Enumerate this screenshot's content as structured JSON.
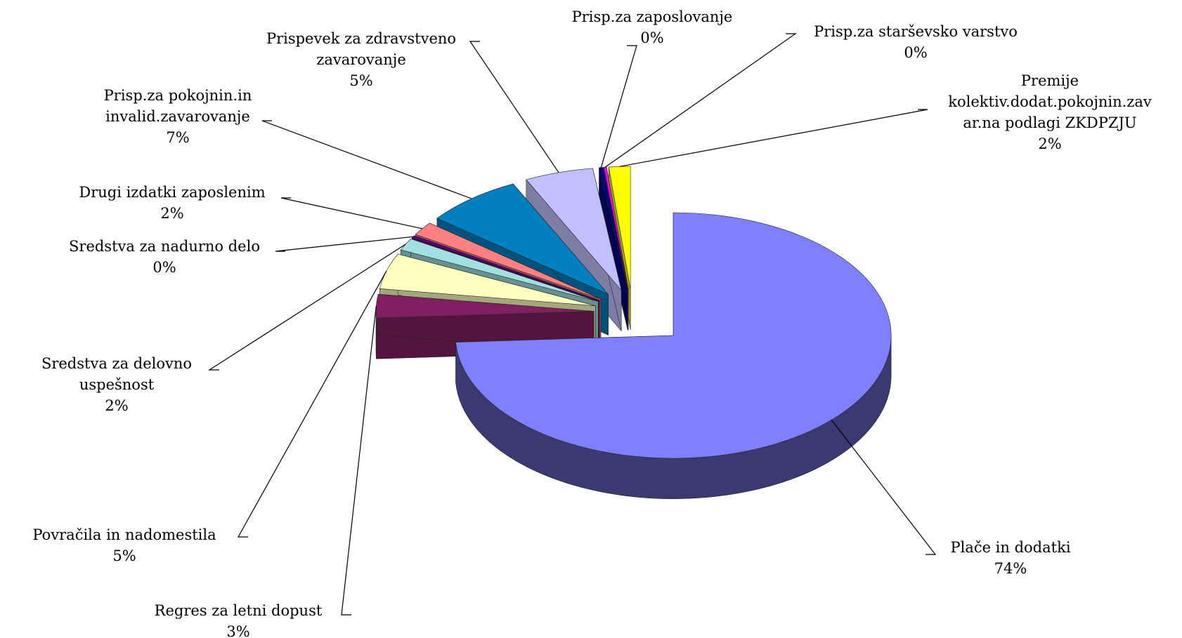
{
  "chart_data": {
    "type": "pie3d",
    "categories": [
      "Plače in dodatki",
      "Regres za letni dopust",
      "Povračila in nadomestila",
      "Sredstva za delovno\nuspešnost",
      "Sredstva za nadurno delo",
      "Drugi izdatki zaposlenim",
      "Prisp.za pokojnin.in\ninvalid.zavarovanje",
      "Prispevek za zdravstveno\nzavarovanje",
      "Prisp.za zaposlovanje",
      "Prisp.za starševsko varstvo",
      "Premije\nkolektiv.dodat.pokojnin.zav\nar.na podlagi ZKDPZJU"
    ],
    "values": [
      74.2,
      3.1,
      4.7,
      1.6,
      0.3,
      1.8,
      7.2,
      5.1,
      0.3,
      0.2,
      1.6
    ],
    "value_labels": [
      "74%",
      "3%",
      "5%",
      "2%",
      "0%",
      "2%",
      "7%",
      "5%",
      "0%",
      "0%",
      "2%"
    ],
    "colors": [
      "#8080ff",
      "#802060",
      "#ffffc0",
      "#a0e0e0",
      "#600080",
      "#ff8080",
      "#0080c0",
      "#c0c0ff",
      "#000080",
      "#ff00ff",
      "#ffff00"
    ]
  }
}
